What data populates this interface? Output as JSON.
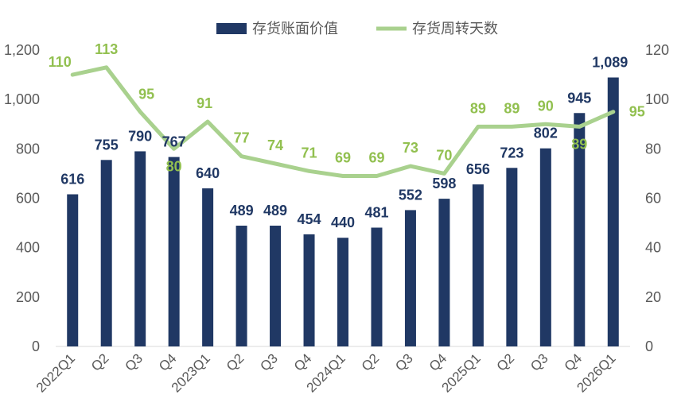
{
  "chart_data": {
    "type": "bar+line",
    "categories": [
      "2022Q1",
      "Q2",
      "Q3",
      "Q4",
      "2023Q1",
      "Q2",
      "Q3",
      "Q4",
      "2024Q1",
      "Q2",
      "Q3",
      "Q4",
      "2025Q1",
      "Q2",
      "Q3",
      "Q4",
      "2026Q1"
    ],
    "series": [
      {
        "name": "存货账面价值",
        "type": "bar",
        "axis": "left",
        "color": "#203864",
        "values": [
          616,
          755,
          790,
          767,
          640,
          489,
          489,
          454,
          440,
          481,
          552,
          598,
          656,
          723,
          802,
          945,
          1089
        ],
        "labels": [
          "616",
          "755",
          "790",
          "767",
          "640",
          "489",
          "489",
          "454",
          "440",
          "481",
          "552",
          "598",
          "656",
          "723",
          "802",
          "945",
          "1,089"
        ]
      },
      {
        "name": "存货周转天数",
        "type": "line",
        "axis": "right",
        "color": "#a9d18e",
        "label_color": "#92c050",
        "values": [
          110,
          113,
          95,
          80,
          91,
          77,
          74,
          71,
          69,
          69,
          73,
          70,
          89,
          89,
          90,
          89,
          95
        ],
        "labels": [
          "110",
          "113",
          "95",
          "80",
          "91",
          "77",
          "74",
          "71",
          "69",
          "69",
          "73",
          "70",
          "89",
          "89",
          "90",
          "89",
          "95"
        ]
      }
    ],
    "y_left": {
      "range": [
        0,
        1200
      ],
      "ticks": [
        "0",
        "200",
        "400",
        "600",
        "800",
        "1,000",
        "1,200"
      ]
    },
    "y_right": {
      "range": [
        0,
        120
      ],
      "ticks": [
        "0",
        "20",
        "40",
        "60",
        "80",
        "100",
        "120"
      ]
    },
    "legend_position": "top-center",
    "grid": false
  }
}
